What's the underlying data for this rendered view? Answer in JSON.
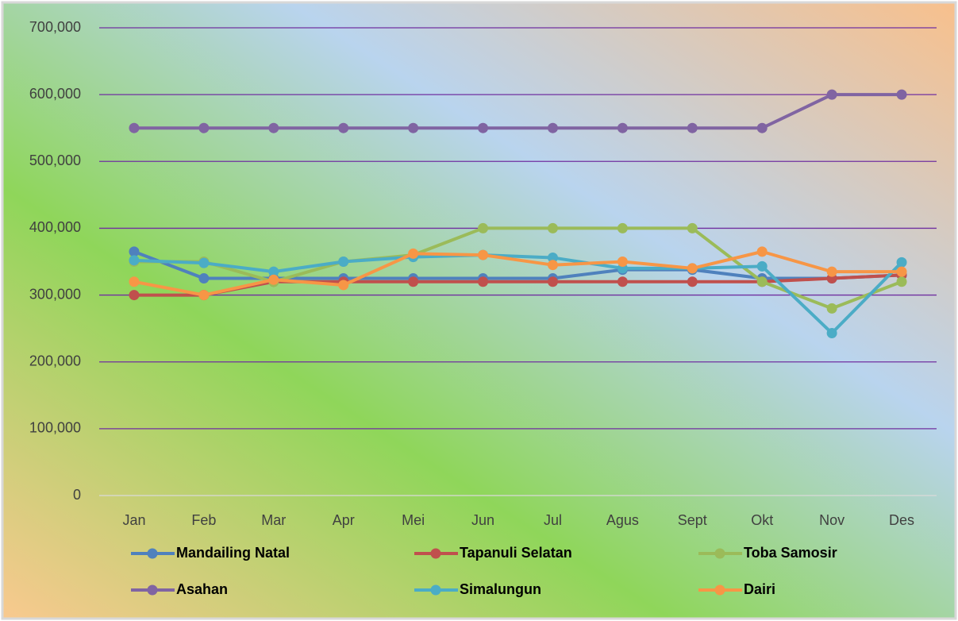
{
  "chart_data": {
    "type": "line",
    "categories": [
      "Jan",
      "Feb",
      "Mar",
      "Apr",
      "Mei",
      "Jun",
      "Jul",
      "Agus",
      "Sept",
      "Okt",
      "Nov",
      "Des"
    ],
    "series": [
      {
        "name": "Mandailing Natal",
        "color": "#4f81bd",
        "values": [
          365000,
          325000,
          325000,
          325000,
          325000,
          325000,
          325000,
          338000,
          338000,
          325000,
          325000,
          330000
        ]
      },
      {
        "name": "Tapanuli Selatan",
        "color": "#c0504d",
        "values": [
          300000,
          300000,
          320000,
          320000,
          320000,
          320000,
          320000,
          320000,
          320000,
          320000,
          325000,
          330000
        ]
      },
      {
        "name": "Toba Samosir",
        "color": "#9bbb59",
        "values": [
          350000,
          350000,
          320000,
          350000,
          360000,
          400000,
          400000,
          400000,
          400000,
          320000,
          280000,
          320000
        ]
      },
      {
        "name": "Asahan",
        "color": "#8064a2",
        "values": [
          550000,
          550000,
          550000,
          550000,
          550000,
          550000,
          550000,
          550000,
          550000,
          550000,
          600000,
          600000
        ]
      },
      {
        "name": "Simalungun",
        "color": "#4bacc6",
        "values": [
          352000,
          348000,
          335000,
          350000,
          357000,
          360000,
          356000,
          340000,
          340000,
          343000,
          243000,
          349000
        ]
      },
      {
        "name": "Dairi",
        "color": "#f79646",
        "values": [
          320000,
          300000,
          323000,
          315000,
          362000,
          360000,
          345000,
          350000,
          340000,
          365000,
          335000,
          335000
        ]
      }
    ],
    "ylim": [
      0,
      700000
    ],
    "yticks": [
      0,
      {
        "value": 100000,
        "label": "100,000"
      },
      {
        "value": 200000,
        "label": "200,000"
      },
      {
        "value": 300000,
        "label": "300,000"
      },
      {
        "value": 400000,
        "label": "400,000"
      },
      {
        "value": 500000,
        "label": "500,000"
      },
      {
        "value": 600000,
        "label": "600,000"
      },
      {
        "value": 700000,
        "label": "700,000"
      }
    ],
    "grid": true,
    "grid_color": "#7030a0",
    "legend": "bottom"
  }
}
